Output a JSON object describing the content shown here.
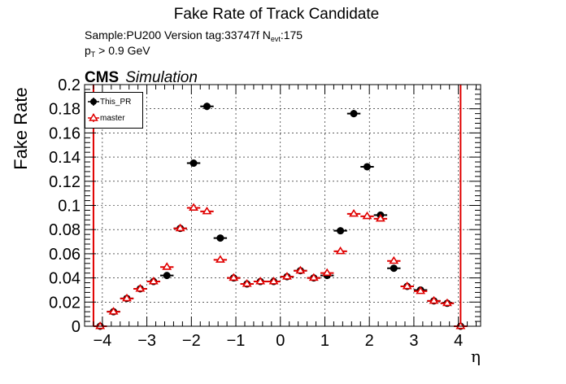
{
  "header": {
    "title": "Fake Rate of Track Candidate",
    "sample_text": "Sample:PU200   Version tag:33747f  N",
    "nevt_sub": "evt",
    "nevt_value": ":175",
    "pt_base": "p",
    "pt_sub": "T",
    "pt_text": " > 0.9 GeV",
    "cms": "CMS",
    "simulation": "Simulation"
  },
  "legend": {
    "entries": [
      "This_PR",
      "master"
    ]
  },
  "chart_data": {
    "type": "scatter",
    "title": "Fake Rate of Track Candidate",
    "xlabel": "η",
    "ylabel": "Fake Rate",
    "xlim": [
      -4.4,
      4.5
    ],
    "ylim": [
      0,
      0.2
    ],
    "grid": true,
    "legend_position": "top-left",
    "x_ticks": [
      "−4",
      "−3",
      "−2",
      "−1",
      "0",
      "1",
      "2",
      "3",
      "4"
    ],
    "y_ticks": [
      "0",
      "0.02",
      "0.04",
      "0.06",
      "0.08",
      "0.1",
      "0.12",
      "0.14",
      "0.16",
      "0.18",
      "0.2"
    ],
    "vertical_lines": [
      -4.2,
      4.05
    ],
    "vertical_line_color": "#e00000",
    "series": [
      {
        "name": "This_PR",
        "color": "#000000",
        "marker": "circle",
        "x": [
          -4.05,
          -3.75,
          -3.45,
          -3.15,
          -2.85,
          -2.55,
          -2.25,
          -1.95,
          -1.65,
          -1.35,
          -1.05,
          -0.75,
          -0.45,
          -0.15,
          0.15,
          0.45,
          0.75,
          1.05,
          1.35,
          1.65,
          1.95,
          2.25,
          2.55,
          2.85,
          3.15,
          3.45,
          3.75,
          4.05
        ],
        "xerr": 0.15,
        "y": [
          0.0,
          0.012,
          0.023,
          0.031,
          0.037,
          0.042,
          0.081,
          0.135,
          0.182,
          0.073,
          0.04,
          0.035,
          0.037,
          0.037,
          0.041,
          0.046,
          0.04,
          0.042,
          0.079,
          0.176,
          0.132,
          0.092,
          0.048,
          0.033,
          0.03,
          0.021,
          0.019,
          0.0
        ],
        "yerr": [
          0.0,
          0.001,
          0.001,
          0.001,
          0.001,
          0.001,
          0.001,
          0.002,
          0.003,
          0.001,
          0.001,
          0.001,
          0.001,
          0.001,
          0.001,
          0.001,
          0.001,
          0.001,
          0.001,
          0.003,
          0.002,
          0.001,
          0.001,
          0.001,
          0.001,
          0.001,
          0.001,
          0.0
        ]
      },
      {
        "name": "master",
        "color": "#e00000",
        "marker": "open-triangle",
        "x": [
          -4.05,
          -3.75,
          -3.45,
          -3.15,
          -2.85,
          -2.55,
          -2.25,
          -1.95,
          -1.65,
          -1.35,
          -1.05,
          -0.75,
          -0.45,
          -0.15,
          0.15,
          0.45,
          0.75,
          1.05,
          1.35,
          1.65,
          1.95,
          2.25,
          2.55,
          2.85,
          3.15,
          3.45,
          3.75,
          4.05
        ],
        "xerr": 0.15,
        "y": [
          0.0,
          0.012,
          0.023,
          0.031,
          0.037,
          0.049,
          0.081,
          0.098,
          0.095,
          0.055,
          0.04,
          0.035,
          0.037,
          0.037,
          0.041,
          0.046,
          0.04,
          0.044,
          0.062,
          0.093,
          0.091,
          0.089,
          0.054,
          0.033,
          0.029,
          0.021,
          0.019,
          0.0
        ],
        "yerr": [
          0.0,
          0.001,
          0.001,
          0.001,
          0.001,
          0.001,
          0.001,
          0.001,
          0.001,
          0.001,
          0.001,
          0.001,
          0.001,
          0.001,
          0.001,
          0.001,
          0.001,
          0.001,
          0.001,
          0.001,
          0.001,
          0.001,
          0.001,
          0.001,
          0.001,
          0.001,
          0.001,
          0.0
        ]
      }
    ]
  }
}
